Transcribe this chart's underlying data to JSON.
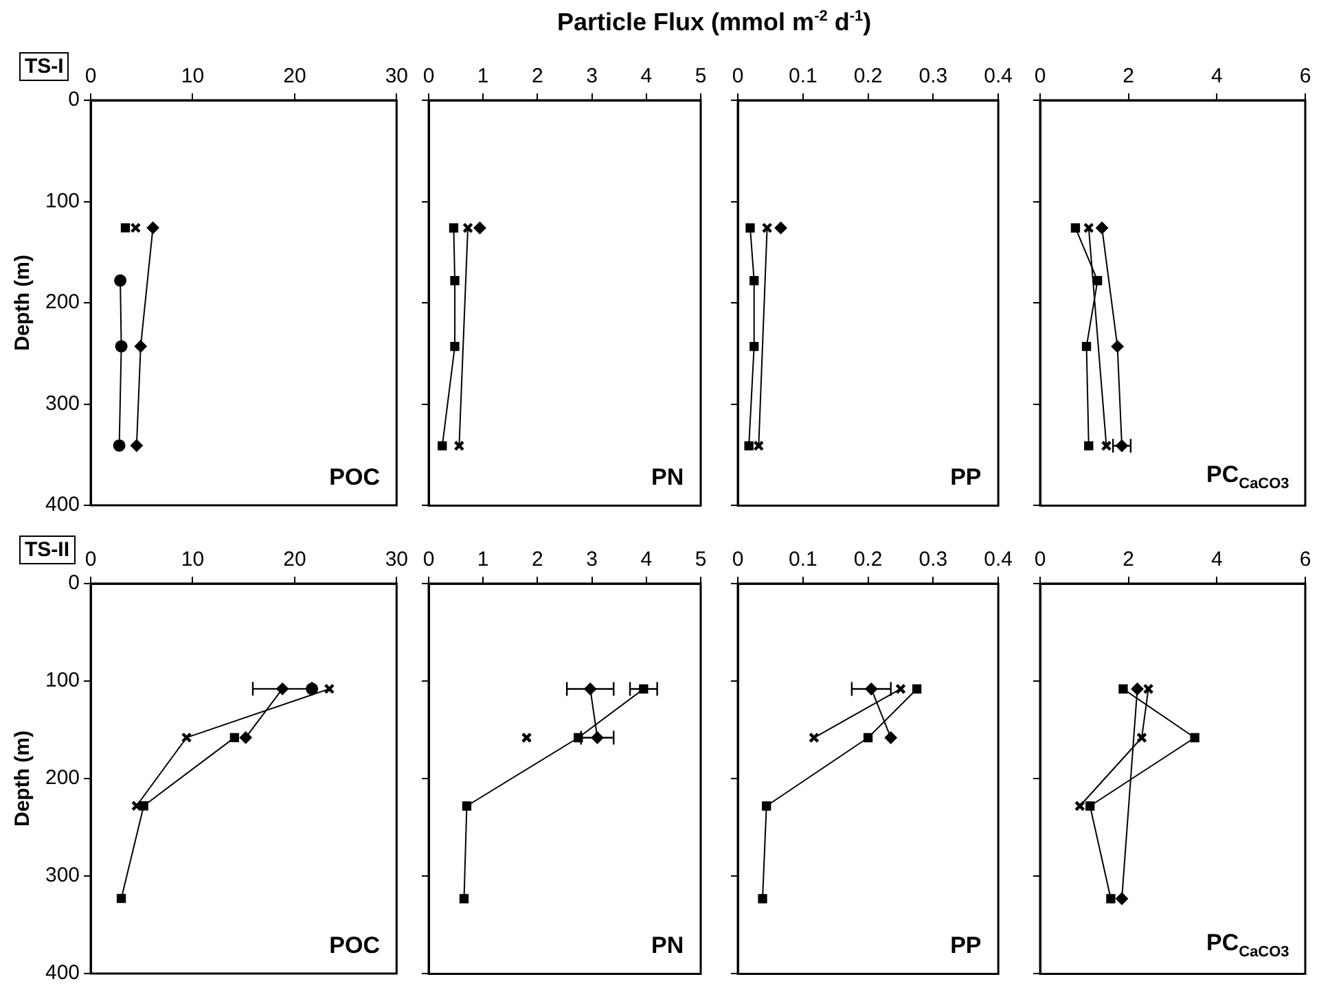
{
  "chart_data": [
    {
      "type": "line",
      "title": "POC",
      "subtitle": "TS-I",
      "annotations": [
        "Particle Flux (mmol m$^{-2}$ d$^{-1}$)"
      ],
      "ylabel": "Depth (m)",
      "xlim": [
        0,
        30
      ],
      "xticks": [
        0,
        10,
        20,
        30
      ],
      "ylim": [
        400,
        0
      ],
      "yticks": [
        0,
        100,
        200,
        300,
        400
      ],
      "grid": false,
      "legend": false,
      "series": [
        {
          "marker": "diamond",
          "color": "#000000",
          "x": [
            6.1,
            null,
            4.9,
            4.5
          ],
          "values": [
            126,
            null,
            243,
            341
          ]
        },
        {
          "marker": "square",
          "color": "#000000",
          "x": [
            3.4,
            null,
            null,
            null
          ],
          "values": [
            126,
            null,
            null,
            null
          ]
        },
        {
          "marker": "cross",
          "color": "#000000",
          "x": [
            4.4,
            null,
            null,
            null
          ],
          "values": [
            126,
            null,
            null,
            null
          ]
        },
        {
          "marker": "circle",
          "color": "#000000",
          "x": [
            null,
            2.9,
            3.0,
            2.8
          ],
          "values": [
            null,
            178,
            243,
            341
          ]
        }
      ]
    },
    {
      "type": "line",
      "title": "PN",
      "xlim": [
        0,
        5
      ],
      "xticks": [
        0,
        1,
        2,
        3,
        4,
        5
      ],
      "ylim": [
        400,
        0
      ],
      "yticks": [
        0,
        100,
        200,
        300,
        400
      ],
      "tick_labels": "x",
      "grid": false,
      "legend": false,
      "series": [
        {
          "marker": "diamond",
          "color": "#000000",
          "x": [
            0.94
          ],
          "values": [
            126
          ]
        },
        {
          "marker": "square",
          "color": "#000000",
          "x": [
            0.46,
            0.48,
            0.48,
            0.25
          ],
          "values": [
            126,
            178,
            243,
            341
          ]
        },
        {
          "marker": "cross",
          "color": "#000000",
          "x": [
            0.72,
            0.56
          ],
          "values": [
            126,
            341
          ]
        }
      ]
    },
    {
      "type": "line",
      "title": "PP",
      "xlim": [
        0,
        0.4
      ],
      "xticks": [
        0,
        0.1,
        0.2,
        0.3,
        0.4
      ],
      "ylim": [
        400,
        0
      ],
      "yticks": [
        0,
        100,
        200,
        300,
        400
      ],
      "tick_labels": "x",
      "grid": false,
      "legend": false,
      "series": [
        {
          "marker": "diamond",
          "color": "#000000",
          "x": [
            0.066
          ],
          "values": [
            126
          ]
        },
        {
          "marker": "square",
          "color": "#000000",
          "x": [
            0.019,
            0.025,
            0.025,
            0.017
          ],
          "values": [
            126,
            178,
            243,
            341
          ]
        },
        {
          "marker": "cross",
          "color": "#000000",
          "x": [
            0.045,
            0.032
          ],
          "values": [
            126,
            341
          ]
        }
      ]
    },
    {
      "type": "line",
      "title": "PC$_{CaCO3}$",
      "xlim": [
        0,
        6
      ],
      "xticks": [
        0,
        2,
        4,
        6
      ],
      "ylim": [
        400,
        0
      ],
      "yticks": [
        0,
        100,
        200,
        300,
        400
      ],
      "tick_labels": "x",
      "grid": false,
      "legend": false,
      "series": [
        {
          "marker": "diamond",
          "color": "#000000",
          "x": [
            1.4,
            1.75,
            1.85
          ],
          "values": [
            126,
            243,
            341
          ],
          "xerrors": [
            null,
            null,
            0.2
          ]
        },
        {
          "marker": "square",
          "color": "#000000",
          "x": [
            0.8,
            1.3,
            1.05,
            1.1
          ],
          "values": [
            126,
            178,
            243,
            341
          ]
        },
        {
          "marker": "cross",
          "color": "#000000",
          "x": [
            1.1,
            1.5
          ],
          "values": [
            126,
            341
          ]
        }
      ]
    },
    {
      "type": "line",
      "title": "POC",
      "subtitle": "TS-II",
      "ylabel": "Depth (m)",
      "xlim": [
        0,
        30
      ],
      "xticks": [
        0,
        10,
        20,
        30
      ],
      "ylim": [
        400,
        0
      ],
      "yticks": [
        0,
        100,
        200,
        300,
        400
      ],
      "grid": false,
      "legend": false,
      "series": [
        {
          "marker": "diamond",
          "color": "#000000",
          "x": [
            18.8,
            15.2
          ],
          "values": [
            108,
            158
          ],
          "xerrors": [
            2.9,
            null
          ]
        },
        {
          "marker": "square",
          "color": "#000000",
          "x": [
            14.1,
            5.2,
            3.0
          ],
          "values": [
            158,
            228,
            323
          ]
        },
        {
          "marker": "cross",
          "color": "#000000",
          "x": [
            23.4,
            9.4,
            4.5
          ],
          "values": [
            108,
            158,
            228
          ]
        },
        {
          "marker": "circle",
          "color": "#000000",
          "x": [
            21.7
          ],
          "values": [
            108
          ]
        }
      ]
    },
    {
      "type": "line",
      "title": "PN",
      "xlim": [
        0,
        5
      ],
      "xticks": [
        0,
        1,
        2,
        3,
        4,
        5
      ],
      "ylim": [
        400,
        0
      ],
      "yticks": [
        0,
        100,
        200,
        300,
        400
      ],
      "tick_labels": "x",
      "grid": false,
      "legend": false,
      "series": [
        {
          "marker": "diamond",
          "color": "#000000",
          "x": [
            2.97,
            3.1
          ],
          "values": [
            108,
            158
          ],
          "xerrors": [
            0.43,
            0.3
          ]
        },
        {
          "marker": "square",
          "color": "#000000",
          "x": [
            3.95,
            2.75,
            0.7,
            0.65
          ],
          "values": [
            108,
            158,
            228,
            323
          ],
          "xerrors": [
            0.25,
            null,
            null,
            null
          ]
        },
        {
          "marker": "cross",
          "color": "#000000",
          "x": [
            1.8
          ],
          "values": [
            158
          ]
        }
      ]
    },
    {
      "type": "line",
      "title": "PP",
      "xlim": [
        0,
        0.4
      ],
      "xticks": [
        0,
        0.1,
        0.2,
        0.3,
        0.4
      ],
      "ylim": [
        400,
        0
      ],
      "yticks": [
        0,
        100,
        200,
        300,
        400
      ],
      "tick_labels": "x",
      "grid": false,
      "legend": false,
      "series": [
        {
          "marker": "diamond",
          "color": "#000000",
          "x": [
            0.205,
            0.235
          ],
          "values": [
            108,
            158
          ],
          "xerrors": [
            0.03,
            null
          ]
        },
        {
          "marker": "square",
          "color": "#000000",
          "x": [
            0.275,
            0.2,
            0.044,
            0.038
          ],
          "values": [
            108,
            158,
            228,
            323
          ]
        },
        {
          "marker": "cross",
          "color": "#000000",
          "x": [
            0.25,
            0.117
          ],
          "values": [
            108,
            158
          ]
        }
      ]
    },
    {
      "type": "line",
      "title": "PC$_{CaCO3}$",
      "xlim": [
        0,
        6
      ],
      "xticks": [
        0,
        2,
        4,
        6
      ],
      "ylim": [
        400,
        0
      ],
      "yticks": [
        0,
        100,
        200,
        300,
        400
      ],
      "tick_labels": "x",
      "grid": false,
      "legend": false,
      "series": [
        {
          "marker": "diamond",
          "color": "#000000",
          "x": [
            2.2,
            1.85
          ],
          "values": [
            108,
            323
          ]
        },
        {
          "marker": "square",
          "color": "#000000",
          "x": [
            1.88,
            3.5,
            1.13,
            1.6
          ],
          "values": [
            108,
            158,
            228,
            323
          ]
        },
        {
          "marker": "cross",
          "color": "#000000",
          "x": [
            2.45,
            2.3,
            0.9
          ],
          "values": [
            108,
            158,
            228
          ]
        }
      ]
    }
  ]
}
